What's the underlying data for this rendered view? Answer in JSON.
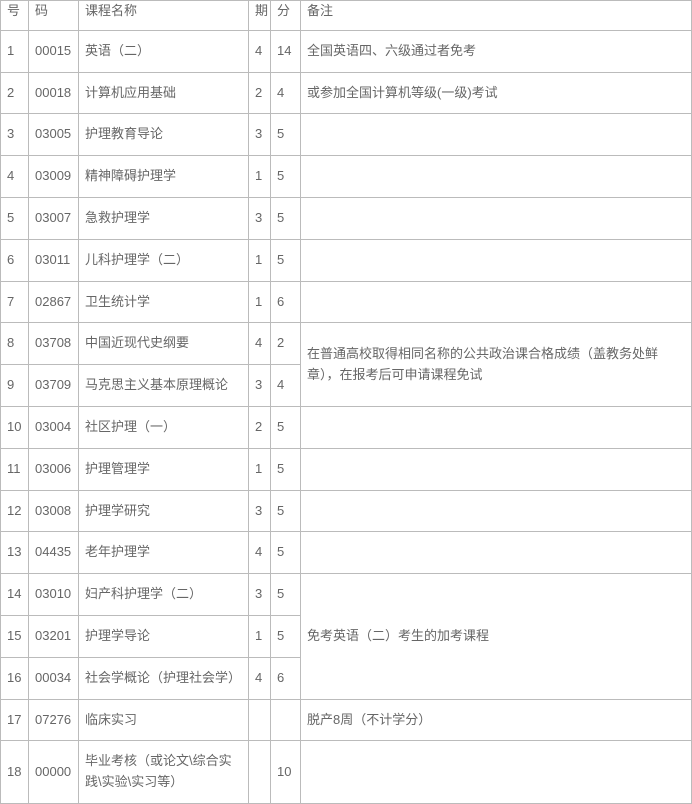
{
  "table": {
    "headers": {
      "seq": "号",
      "code": "码",
      "name": "课程名称",
      "term": "期",
      "credit": "分",
      "remark": "备注"
    },
    "rows": [
      {
        "seq": "1",
        "code": "00015",
        "name": "英语（二）",
        "term": "4",
        "credit": "14",
        "remark": "全国英语四、六级通过者免考"
      },
      {
        "seq": "2",
        "code": "00018",
        "name": "计算机应用基础",
        "term": "2",
        "credit": "4",
        "remark": "或参加全国计算机等级(一级)考试"
      },
      {
        "seq": "3",
        "code": "03005",
        "name": "护理教育导论",
        "term": "3",
        "credit": "5",
        "remark": ""
      },
      {
        "seq": "4",
        "code": "03009",
        "name": "精神障碍护理学",
        "term": "1",
        "credit": "5",
        "remark": ""
      },
      {
        "seq": "5",
        "code": "03007",
        "name": "急救护理学",
        "term": "3",
        "credit": "5",
        "remark": ""
      },
      {
        "seq": "6",
        "code": "03011",
        "name": "儿科护理学（二）",
        "term": "1",
        "credit": "5",
        "remark": ""
      },
      {
        "seq": "7",
        "code": "02867",
        "name": "卫生统计学",
        "term": "1",
        "credit": "6",
        "remark": ""
      },
      {
        "seq": "8",
        "code": "03708",
        "name": "中国近现代史纲要",
        "term": "4",
        "credit": "2",
        "remark": ""
      },
      {
        "seq": "9",
        "code": "03709",
        "name": "马克思主义基本原理概论",
        "term": "3",
        "credit": "4",
        "remark": ""
      },
      {
        "seq": "10",
        "code": "03004",
        "name": "社区护理（一）",
        "term": "2",
        "credit": "5",
        "remark": ""
      },
      {
        "seq": "11",
        "code": "03006",
        "name": "护理管理学",
        "term": "1",
        "credit": "5",
        "remark": ""
      },
      {
        "seq": "12",
        "code": "03008",
        "name": "护理学研究",
        "term": "3",
        "credit": "5",
        "remark": ""
      },
      {
        "seq": "13",
        "code": "04435",
        "name": "老年护理学",
        "term": "4",
        "credit": "5",
        "remark": ""
      },
      {
        "seq": "14",
        "code": "03010",
        "name": "妇产科护理学（二）",
        "term": "3",
        "credit": "5",
        "remark": ""
      },
      {
        "seq": "15",
        "code": "03201",
        "name": "护理学导论",
        "term": "1",
        "credit": "5",
        "remark": ""
      },
      {
        "seq": "16",
        "code": "00034",
        "name": "社会学概论（护理社会学）",
        "term": "4",
        "credit": "6",
        "remark": ""
      },
      {
        "seq": "17",
        "code": "07276",
        "name": "临床实习",
        "term": "",
        "credit": "",
        "remark": "脱产8周（不计学分）"
      },
      {
        "seq": "18",
        "code": "00000",
        "name": "毕业考核（或论文\\综合实践\\实验\\实习等）",
        "term": "",
        "credit": "10",
        "remark": ""
      }
    ],
    "merged_remarks": {
      "rows_8_9": "在普通高校取得相同名称的公共政治课合格成绩（盖教务处鲜章），在报考后可申请课程免试",
      "rows_14_16": "免考英语（二）考生的加考课程"
    },
    "colors": {
      "border": "#bbbbbb",
      "text": "#666666",
      "background": "#ffffff"
    },
    "font_size": 13
  }
}
